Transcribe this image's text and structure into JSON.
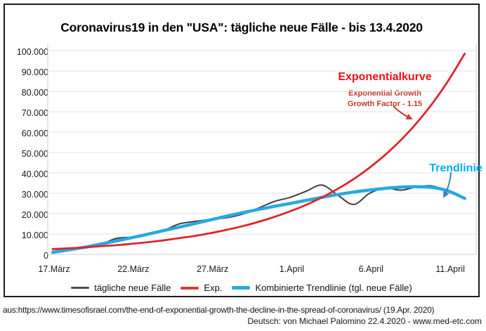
{
  "title": "Coronavirus19 in den \"USA\": tägliche neue Fälle - bis 13.4.2020",
  "annotations": {
    "exponential_label": "Exponentialkurve",
    "exponential_sub1": "Exponential Growth",
    "exponential_sub2": "Growth Factor - 1.15",
    "trend_label": "Trendlinie"
  },
  "legend": [
    {
      "label": "tägliche neue Fälle",
      "color": "#4d4d4d"
    },
    {
      "label": "Exp.",
      "color": "#d43a3a"
    },
    {
      "label": "Kombinierte Trendlinie (tgl. neue Fälle)",
      "color": "#27a9e0"
    }
  ],
  "footer": {
    "source_line": "aus:https://www.timesofisrael.com/the-end-of-exponential-growth-the-decline-in-the-spread-of-coronavirus/ (19.Apr. 2020)",
    "credit_line": "Deutsch: von Michael Palomino 22.4.2020 - www.med-etc.com"
  },
  "chart_data": {
    "type": "line",
    "title": "Coronavirus19 in den \"USA\": tägliche neue Fälle - bis 13.4.2020",
    "xlabel": "",
    "ylabel": "",
    "ylim": [
      0,
      100000
    ],
    "grid": true,
    "legend_position": "bottom",
    "y_ticks": [
      {
        "label": "100.000",
        "value": 100000
      },
      {
        "label": "90.000",
        "value": 90000
      },
      {
        "label": "80.000",
        "value": 80000
      },
      {
        "label": "70.000",
        "value": 70000
      },
      {
        "label": "60.000",
        "value": 60000
      },
      {
        "label": "50.000",
        "value": 50000
      },
      {
        "label": "40.000",
        "value": 40000
      },
      {
        "label": "30.000",
        "value": 30000
      },
      {
        "label": "20.000",
        "value": 20000
      },
      {
        "label": "10.000",
        "value": 10000
      },
      {
        "label": "0",
        "value": 0
      }
    ],
    "x_ticks": [
      {
        "label": "17.März",
        "day": 0
      },
      {
        "label": "22.März",
        "day": 5
      },
      {
        "label": "27.März",
        "day": 10
      },
      {
        "label": "1.April",
        "day": 15
      },
      {
        "label": "6.April",
        "day": 20
      },
      {
        "label": "11.April",
        "day": 25
      }
    ],
    "days": [
      0,
      1,
      2,
      3,
      4,
      5,
      6,
      7,
      8,
      9,
      10,
      11,
      12,
      13,
      14,
      15,
      16,
      17,
      18,
      19,
      20,
      21,
      22,
      23,
      24,
      25,
      26
    ],
    "series": [
      {
        "name": "tägliche neue Fälle",
        "color": "#3f3f3f",
        "width": 2,
        "values": [
          1500,
          2500,
          3800,
          4800,
          7800,
          8500,
          10000,
          11800,
          15000,
          16200,
          17200,
          18000,
          19800,
          22800,
          26000,
          28000,
          31000,
          34000,
          29000,
          24500,
          30000,
          32500,
          31500,
          33200,
          33500,
          30500,
          27500
        ]
      },
      {
        "name": "Kombinierte Trendlinie (tgl. neue Fälle)",
        "color": "#27a9e0",
        "width": 4.5,
        "values": [
          1000,
          2200,
          3500,
          5000,
          6600,
          8200,
          9900,
          11700,
          13400,
          15200,
          17000,
          18800,
          20500,
          22100,
          23600,
          25000,
          26500,
          28000,
          29400,
          30600,
          31600,
          32400,
          33000,
          33200,
          32800,
          31000,
          27500
        ]
      },
      {
        "name": "Exp. (Growth Factor 1.15)",
        "color": "#e0242a",
        "width": 2.8,
        "values": [
          2600,
          3000,
          3400,
          4000,
          4500,
          5200,
          6000,
          6900,
          8000,
          9100,
          10500,
          12100,
          13900,
          16000,
          18400,
          21200,
          24300,
          28000,
          32200,
          37000,
          42600,
          49000,
          56300,
          64800,
          74500,
          85700,
          98500
        ]
      }
    ]
  }
}
